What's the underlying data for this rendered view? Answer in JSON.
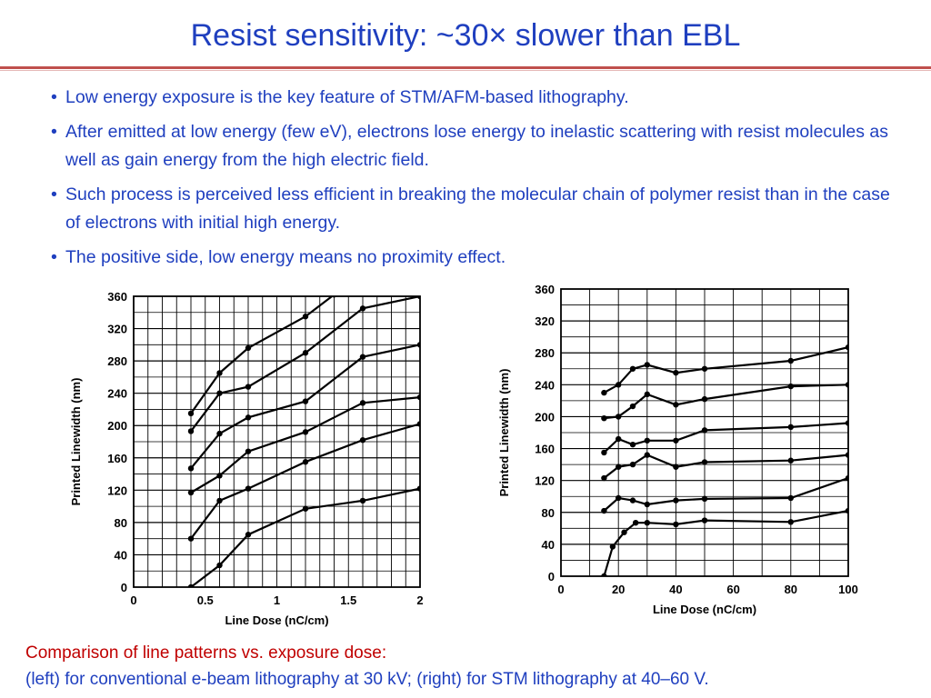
{
  "slide": {
    "title": "Resist sensitivity: ~30× slower than EBL",
    "bullets": [
      "Low energy exposure is the key feature of STM/AFM-based lithography.",
      "After emitted at low energy (few eV), electrons lose energy to inelastic scattering with resist  molecules as well as gain energy from the high electric field.",
      "Such process is perceived less efficient in breaking the molecular chain of polymer resist than in the case of electrons with initial high energy.",
      "The positive side, low energy means no proximity effect."
    ],
    "caption_line1": "Comparison of line patterns vs. exposure dose:",
    "caption_line2": "(left) for conventional e-beam lithography at 30 kV; (right) for STM lithography at 40–60 V.",
    "colors": {
      "title": "#1f3fbf",
      "accent_rule": "#c0504d",
      "caption": "#c00000"
    }
  },
  "chart_data": [
    {
      "type": "line",
      "xlabel": "Line Dose (nC/cm)",
      "ylabel": "Printed Linewidth (nm)",
      "xlim": [
        0,
        2
      ],
      "ylim": [
        0,
        360
      ],
      "xticks": [
        0,
        0.5,
        1,
        1.5,
        2
      ],
      "xtick_labels": [
        "0",
        "0.5",
        "1",
        "1.5",
        "2"
      ],
      "yticks": [
        0,
        40,
        80,
        120,
        160,
        200,
        240,
        280,
        320,
        360
      ],
      "grid": true,
      "series": [
        {
          "x": [
            0.4,
            0.6,
            0.8,
            1.2,
            1.6,
            2.0
          ],
          "y": [
            0,
            27,
            65,
            97,
            107,
            122
          ]
        },
        {
          "x": [
            0.4,
            0.6,
            0.8,
            1.2,
            1.6,
            2.0
          ],
          "y": [
            60,
            107,
            122,
            155,
            182,
            202
          ]
        },
        {
          "x": [
            0.4,
            0.6,
            0.8,
            1.2,
            1.6,
            2.0
          ],
          "y": [
            117,
            138,
            168,
            192,
            228,
            235
          ]
        },
        {
          "x": [
            0.4,
            0.6,
            0.8,
            1.2,
            1.6,
            2.0
          ],
          "y": [
            147,
            190,
            210,
            230,
            285,
            300
          ]
        },
        {
          "x": [
            0.4,
            0.6,
            0.8,
            1.2,
            1.6,
            2.0
          ],
          "y": [
            193,
            240,
            248,
            290,
            345,
            360
          ]
        },
        {
          "x": [
            0.4,
            0.6,
            0.8,
            1.2,
            1.4
          ],
          "y": [
            215,
            265,
            296,
            335,
            362
          ]
        }
      ]
    },
    {
      "type": "line",
      "xlabel": "Line Dose (nC/cm)",
      "ylabel": "Printed Linewidth (nm)",
      "xlim": [
        0,
        100
      ],
      "ylim": [
        0,
        360
      ],
      "xticks": [
        0,
        20,
        40,
        60,
        80,
        100
      ],
      "xtick_labels": [
        "0",
        "20",
        "40",
        "60",
        "80",
        "100"
      ],
      "yticks": [
        0,
        40,
        80,
        120,
        160,
        200,
        240,
        280,
        320,
        360
      ],
      "grid": true,
      "series": [
        {
          "x": [
            15,
            18,
            22,
            26,
            30,
            40,
            50,
            80,
            100
          ],
          "y": [
            0,
            37,
            55,
            67,
            67,
            65,
            70,
            68,
            82
          ]
        },
        {
          "x": [
            15,
            20,
            25,
            30,
            40,
            50,
            80,
            100
          ],
          "y": [
            82,
            98,
            95,
            90,
            95,
            97,
            98,
            123
          ]
        },
        {
          "x": [
            15,
            20,
            25,
            30,
            40,
            50,
            80,
            100
          ],
          "y": [
            123,
            137,
            140,
            152,
            137,
            143,
            145,
            152
          ]
        },
        {
          "x": [
            15,
            20,
            25,
            30,
            40,
            50,
            80,
            100
          ],
          "y": [
            155,
            172,
            165,
            170,
            170,
            183,
            187,
            192
          ]
        },
        {
          "x": [
            15,
            20,
            25,
            30,
            40,
            50,
            80,
            100
          ],
          "y": [
            198,
            200,
            213,
            228,
            215,
            222,
            238,
            240
          ]
        },
        {
          "x": [
            15,
            20,
            25,
            30,
            40,
            50,
            80,
            100
          ],
          "y": [
            230,
            240,
            260,
            265,
            255,
            260,
            270,
            287
          ]
        }
      ]
    }
  ]
}
